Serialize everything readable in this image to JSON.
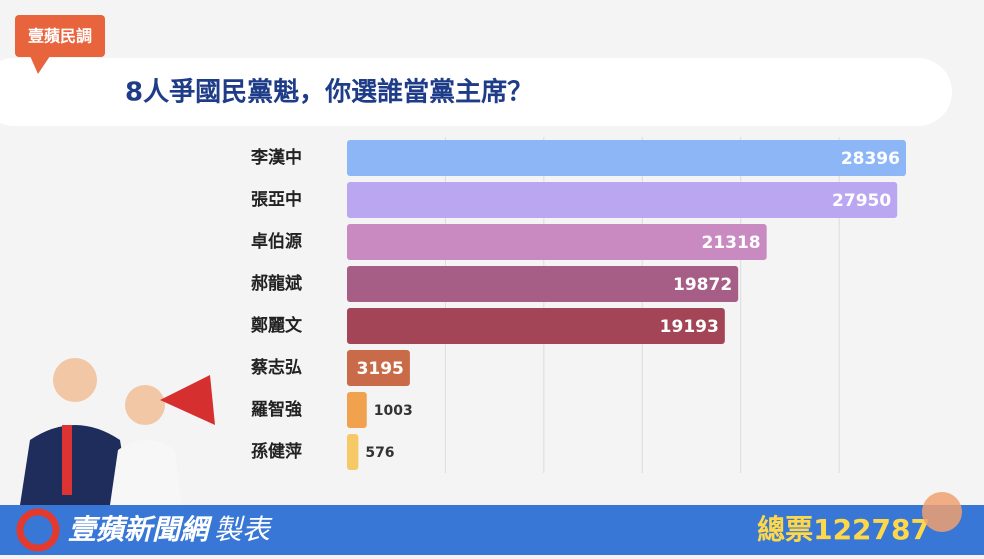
{
  "tag": "壹蘋民調",
  "footer": {
    "brand": "壹蘋新聞網",
    "suffix": "製表",
    "total_label": "總票",
    "total": 122787
  },
  "chart_data": {
    "type": "hbar",
    "title": "8人爭國民黨魁，你選誰當黨主席？",
    "categories": [
      "李漢中",
      "張亞中",
      "卓伯源",
      "郝龍斌",
      "鄭麗文",
      "蔡志弘",
      "羅智強",
      "孫健萍"
    ],
    "values": [
      28396,
      27950,
      21318,
      19872,
      19193,
      3195,
      1003,
      576
    ],
    "colors": [
      "#8db6f7",
      "#bba6f1",
      "#c98ac1",
      "#a75e86",
      "#a34556",
      "#c96a48",
      "#f0a24f",
      "#f5c965"
    ],
    "xlim": [
      0,
      28600
    ],
    "xticks": [
      5000,
      10000,
      15000,
      20000,
      25000
    ],
    "grid": true
  }
}
